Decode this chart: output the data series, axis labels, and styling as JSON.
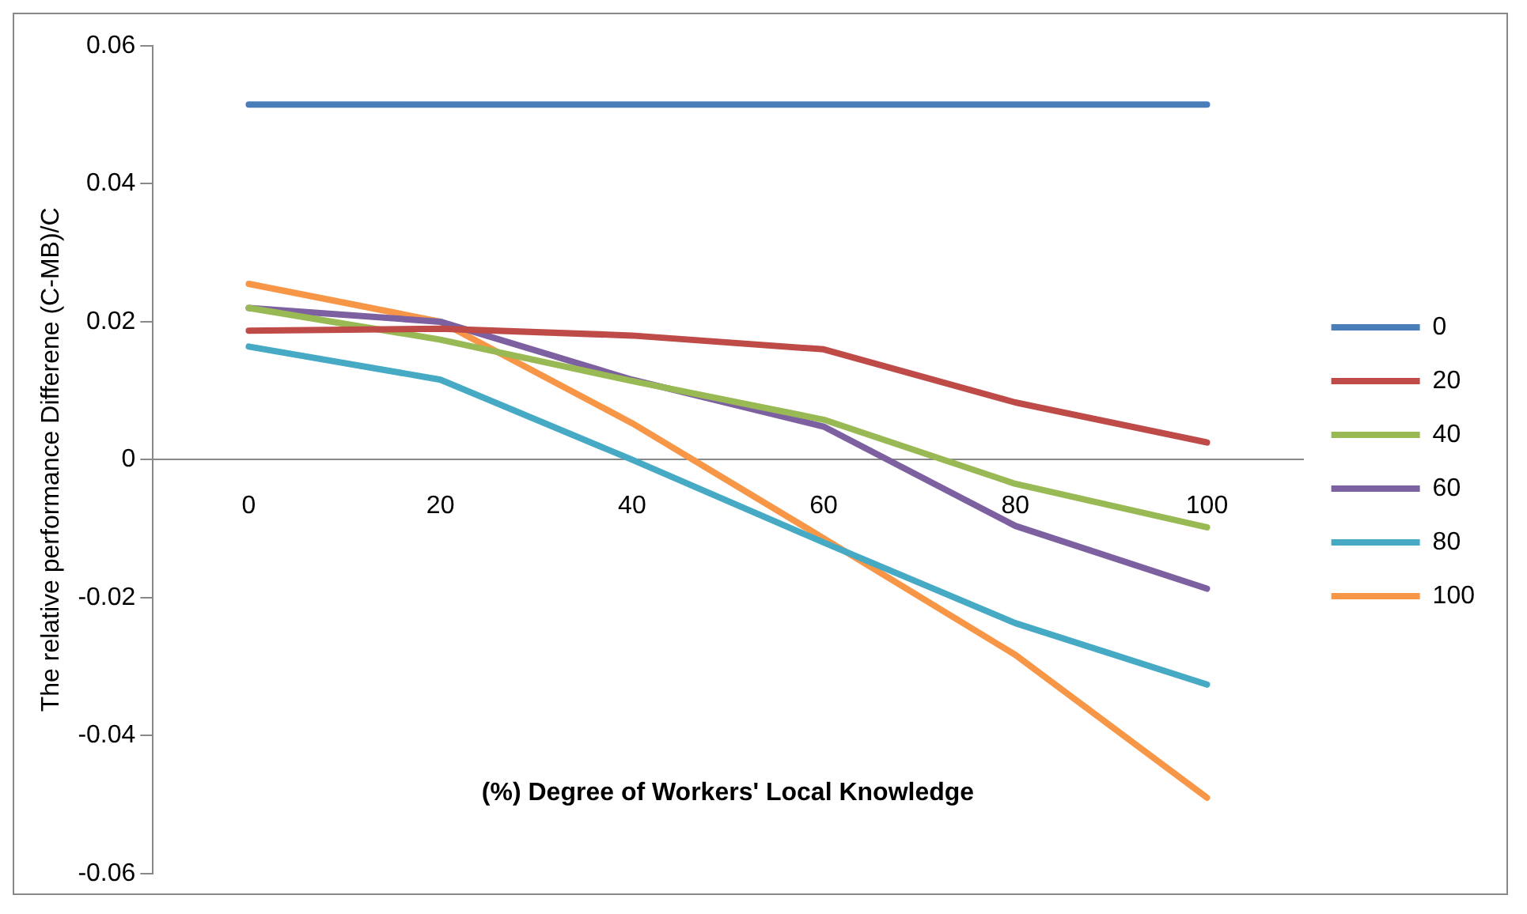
{
  "chart_data": {
    "type": "line",
    "xlabel": "(%) Degree of Workers' Local Knowledge",
    "ylabel": "The relative performance Differene (C-MB)/C",
    "categories": [
      "0",
      "20",
      "40",
      "60",
      "80",
      "100"
    ],
    "series": [
      {
        "name": "0",
        "color": "#4a7ebb",
        "values": [
          0.0515,
          0.0515,
          0.0515,
          0.0515,
          0.0515,
          0.0515
        ]
      },
      {
        "name": "20",
        "color": "#be4b48",
        "values": [
          0.0187,
          0.019,
          0.018,
          0.016,
          0.0083,
          0.0025
        ]
      },
      {
        "name": "40",
        "color": "#98b954",
        "values": [
          0.022,
          0.0174,
          0.0114,
          0.0058,
          -0.0035,
          -0.0098
        ]
      },
      {
        "name": "60",
        "color": "#7d60a0",
        "values": [
          0.022,
          0.02,
          0.0116,
          0.0048,
          -0.0096,
          -0.0187
        ]
      },
      {
        "name": "80",
        "color": "#46aac5",
        "values": [
          0.0164,
          0.0116,
          0,
          -0.012,
          -0.0237,
          -0.0326
        ]
      },
      {
        "name": "100",
        "color": "#f79646",
        "values": [
          0.0255,
          0.02,
          0.0053,
          -0.0114,
          -0.0283,
          -0.049
        ]
      }
    ],
    "ylim": [
      -0.06,
      0.06
    ],
    "yticks": [
      -0.06,
      -0.04,
      -0.02,
      0,
      0.02,
      0.04,
      0.06
    ],
    "grid": false,
    "legend": "right",
    "marker": "none",
    "line_style": "solid"
  }
}
